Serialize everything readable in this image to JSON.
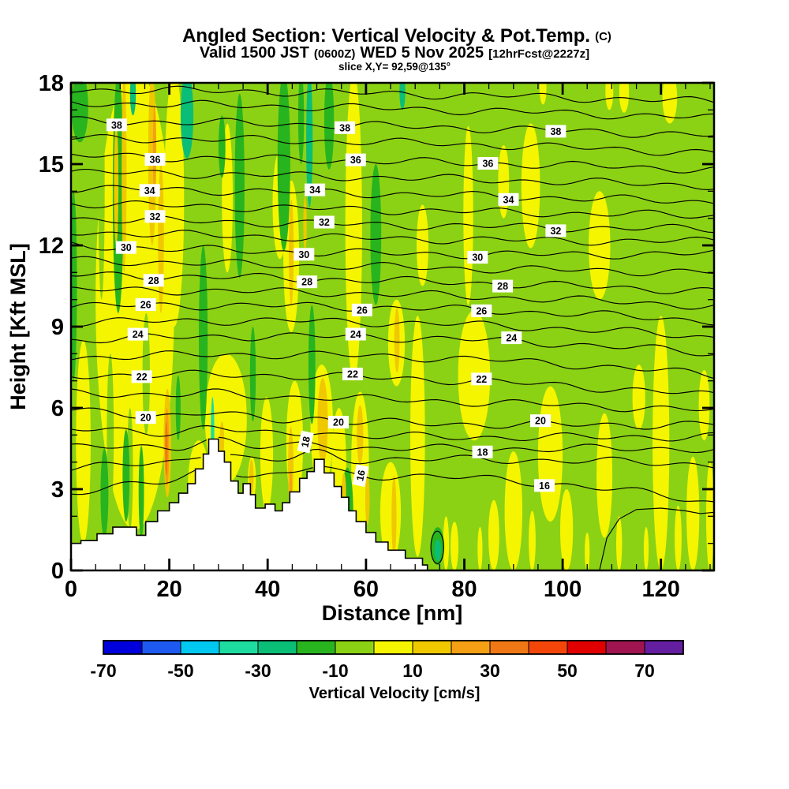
{
  "header": {
    "title_main": "Angled Section: Vertical Velocity & Pot.Temp.",
    "title_unit": "(C)",
    "valid_prefix": "Valid 1500 JST",
    "valid_utc": "(0600Z)",
    "valid_date": "WED 5 Nov 2025",
    "valid_fcst": "[12hrFcst@2227z]",
    "slice": "slice X,Y= 92,59@135°"
  },
  "chart_data": {
    "type": "filled-contour-cross-section",
    "title": "Angled Section: Vertical Velocity & Pot.Temp. (C)",
    "x_axis": {
      "label": "Distance [nm]",
      "min": 0,
      "max": 130.8,
      "major_tick_step": 20,
      "minor_tick_step": 5,
      "tick_labels": [
        0,
        20,
        40,
        60,
        80,
        100,
        120
      ]
    },
    "y_axis": {
      "label": "Height [Kft MSL]",
      "min": 0,
      "max": 18,
      "major_tick_step": 3,
      "minor_tick_step": 1,
      "tick_labels": [
        0,
        3,
        6,
        9,
        12,
        15,
        18
      ]
    },
    "fill_field": {
      "name": "Vertical Velocity",
      "unit": "cm/s",
      "background_value_bin": "-10..0"
    },
    "colorbar": {
      "title": "Vertical Velocity [cm/s]",
      "min": -70,
      "max": 80,
      "step": 10,
      "tick_labels": [
        -70,
        -50,
        -30,
        -10,
        10,
        30,
        50,
        70
      ],
      "colors": [
        "#0000DC",
        "#1E5AF0",
        "#00C8F0",
        "#1EDCA0",
        "#0ABE78",
        "#28B41E",
        "#8CD214",
        "#F5F500",
        "#F0C800",
        "#F5A014",
        "#F07814",
        "#F5460A",
        "#E10000",
        "#A01450",
        "#641EA0"
      ]
    },
    "contours": {
      "name": "Potential Temperature",
      "unit": "C",
      "interval": 1,
      "label_interval": 2,
      "level_format": "[theta_C, height_kft_at_x0, height_kft_at_x65, height_kft_at_x131]",
      "levels": [
        [
          16,
          2.9,
          3.5,
          2.5
        ],
        [
          17,
          3.8,
          4.1,
          3.9
        ],
        [
          18,
          4.55,
          4.5,
          4.5
        ],
        [
          19,
          5.2,
          4.95,
          4.95
        ],
        [
          20,
          5.9,
          5.45,
          5.4
        ],
        [
          21,
          6.55,
          6.3,
          5.9
        ],
        [
          22,
          7.2,
          7.1,
          6.45
        ],
        [
          23,
          7.85,
          7.9,
          7.2
        ],
        [
          24,
          8.5,
          8.6,
          8.0
        ],
        [
          25,
          9.15,
          9.15,
          8.6
        ],
        [
          26,
          9.75,
          9.7,
          9.2
        ],
        [
          27,
          10.35,
          10.2,
          9.75
        ],
        [
          28,
          10.9,
          10.7,
          10.3
        ],
        [
          29,
          11.45,
          11.2,
          11.0
        ],
        [
          30,
          12.0,
          11.7,
          11.7
        ],
        [
          31,
          12.5,
          12.25,
          12.15
        ],
        [
          32,
          13.0,
          12.75,
          12.6
        ],
        [
          33,
          13.55,
          13.3,
          13.1
        ],
        [
          34,
          14.1,
          13.9,
          13.6
        ],
        [
          35,
          14.7,
          14.5,
          14.2
        ],
        [
          36,
          15.3,
          15.1,
          14.8
        ],
        [
          37,
          15.95,
          15.8,
          15.4
        ],
        [
          38,
          16.6,
          16.4,
          16.05
        ],
        [
          39,
          17.25,
          17.05,
          16.7
        ],
        [
          40,
          17.75,
          17.6,
          17.3
        ]
      ],
      "label_format": "[theta_C, [[x_nm, rotated_flag], ...]]",
      "labels": [
        [
          16,
          [
            [
              58.9,
              1
            ],
            [
              96.3,
              0
            ]
          ]
        ],
        [
          18,
          [
            [
              47.7,
              1
            ],
            [
              83.7,
              0
            ]
          ]
        ],
        [
          20,
          [
            [
              15.2,
              0
            ],
            [
              54.4,
              0
            ],
            [
              95.5,
              0
            ]
          ]
        ],
        [
          22,
          [
            [
              14.4,
              0
            ],
            [
              57.3,
              0
            ],
            [
              83.5,
              0
            ]
          ]
        ],
        [
          24,
          [
            [
              13.6,
              0
            ],
            [
              57.9,
              0
            ],
            [
              89.6,
              0
            ]
          ]
        ],
        [
          26,
          [
            [
              15.2,
              0
            ],
            [
              59.2,
              0
            ],
            [
              83.5,
              0
            ]
          ]
        ],
        [
          28,
          [
            [
              16.8,
              0
            ],
            [
              48,
              0
            ],
            [
              87.8,
              0
            ]
          ]
        ],
        [
          30,
          [
            [
              11.2,
              0
            ],
            [
              47.4,
              0
            ],
            [
              82.7,
              0
            ]
          ]
        ],
        [
          32,
          [
            [
              17.1,
              0
            ],
            [
              51.5,
              0
            ],
            [
              98.6,
              0
            ]
          ]
        ],
        [
          34,
          [
            [
              16,
              0
            ],
            [
              49.6,
              0
            ],
            [
              89,
              0
            ]
          ]
        ],
        [
          36,
          [
            [
              17.1,
              0
            ],
            [
              57.9,
              0
            ],
            [
              84.8,
              0
            ]
          ]
        ],
        [
          38,
          [
            [
              9.3,
              0
            ],
            [
              55.7,
              0
            ],
            [
              98.6,
              0
            ]
          ]
        ]
      ],
      "extra_lines": [
        {
          "pts": [
            [
              107.5,
              0
            ],
            [
              109,
              1.2
            ],
            [
              111.5,
              1.9
            ],
            [
              115,
              2.25
            ],
            [
              120,
              2.3
            ],
            [
              125,
              2.2
            ],
            [
              128,
              2.1
            ],
            [
              131,
              2.15
            ]
          ]
        },
        {
          "ellipse": [
            74.5,
            0.85,
            1.3,
            0.6
          ]
        }
      ]
    },
    "terrain": {
      "fill": "#FFFFFF",
      "profile_format": "[distance_nm, height_kft]",
      "profile": [
        [
          0,
          1.0
        ],
        [
          2,
          1.1
        ],
        [
          5.3,
          1.35
        ],
        [
          8.5,
          1.6
        ],
        [
          13.3,
          1.3
        ],
        [
          15.2,
          1.8
        ],
        [
          17.6,
          2.2
        ],
        [
          20,
          2.5
        ],
        [
          21.9,
          2.85
        ],
        [
          23.7,
          3.2
        ],
        [
          25.3,
          3.75
        ],
        [
          26.9,
          4.3
        ],
        [
          28,
          4.85
        ],
        [
          30,
          4.4
        ],
        [
          31.2,
          4.0
        ],
        [
          32.5,
          3.3
        ],
        [
          34,
          2.85
        ],
        [
          35,
          3.2
        ],
        [
          36.5,
          2.8
        ],
        [
          37.5,
          2.3
        ],
        [
          39.5,
          2.45
        ],
        [
          41.5,
          2.2
        ],
        [
          43,
          2.5
        ],
        [
          44.5,
          2.9
        ],
        [
          46.5,
          3.4
        ],
        [
          48,
          3.65
        ],
        [
          49.5,
          4.1
        ],
        [
          51.5,
          3.6
        ],
        [
          53.5,
          3.1
        ],
        [
          55,
          2.7
        ],
        [
          56.5,
          2.2
        ],
        [
          58,
          1.8
        ],
        [
          60,
          1.4
        ],
        [
          62,
          1.05
        ],
        [
          64.5,
          0.75
        ],
        [
          68,
          0.45
        ],
        [
          71.5,
          0.2
        ],
        [
          72.5,
          0
        ]
      ]
    },
    "patch_format": "[x_nm, h_bottom_kft, h_top_kft, width_nm, color_key]",
    "patch_colors": {
      "y": "#F5F500",
      "g1": "#8CD214",
      "g2": "#28B41E",
      "t": "#0ABE78",
      "sp": "#1EDCA0",
      "gd": "#F0C800",
      "o": "#F5A014",
      "o2": "#F07814"
    },
    "patches": [
      [
        13,
        1.5,
        18.5,
        16,
        "y"
      ],
      [
        2.5,
        1,
        8.5,
        3,
        "y"
      ],
      [
        21,
        9,
        18.4,
        4,
        "y"
      ],
      [
        26,
        1.2,
        4.8,
        4.5,
        "y"
      ],
      [
        31.8,
        11,
        16.5,
        2.2,
        "y"
      ],
      [
        31.5,
        3.2,
        8,
        8.5,
        "y"
      ],
      [
        39.8,
        2.2,
        6.4,
        2.6,
        "y"
      ],
      [
        42.5,
        11.5,
        15.5,
        3,
        "y"
      ],
      [
        45.5,
        2.4,
        7,
        3.4,
        "y"
      ],
      [
        44.8,
        8.8,
        14.4,
        3.2,
        "y"
      ],
      [
        51,
        3,
        7.6,
        4.6,
        "y"
      ],
      [
        54.5,
        1.6,
        6,
        3,
        "y"
      ],
      [
        58.8,
        1.2,
        6.6,
        3.6,
        "y"
      ],
      [
        57.5,
        7,
        18.4,
        3.4,
        "y"
      ],
      [
        65,
        0.3,
        4,
        4.2,
        "y"
      ],
      [
        66.2,
        6.8,
        10,
        3.4,
        "y"
      ],
      [
        70.5,
        0.5,
        9.4,
        3,
        "y"
      ],
      [
        71.5,
        10.5,
        13.5,
        2.4,
        "y"
      ],
      [
        80.8,
        9.8,
        16.4,
        2,
        "y"
      ],
      [
        82,
        4.8,
        9.6,
        6.5,
        "y"
      ],
      [
        88,
        13,
        15.7,
        2.2,
        "y"
      ],
      [
        93.5,
        11.9,
        16.5,
        3.8,
        "y"
      ],
      [
        90,
        0,
        4.4,
        3.6,
        "y"
      ],
      [
        97.5,
        1.8,
        6.8,
        5,
        "y"
      ],
      [
        86,
        0,
        2.6,
        2.2,
        "y"
      ],
      [
        100.8,
        0,
        3,
        2.6,
        "y"
      ],
      [
        107.5,
        10,
        14,
        4.4,
        "y"
      ],
      [
        108.5,
        1.2,
        5.8,
        3.2,
        "y"
      ],
      [
        112.5,
        16.9,
        18.4,
        2,
        "y"
      ],
      [
        120,
        0,
        9.4,
        3.4,
        "y"
      ],
      [
        121.8,
        16.5,
        18.4,
        3,
        "y"
      ],
      [
        126.5,
        0,
        4.2,
        2.6,
        "y"
      ],
      [
        128.8,
        4.8,
        7.4,
        2.2,
        "y"
      ],
      [
        115.5,
        5.2,
        7.6,
        2.6,
        "y"
      ],
      [
        96,
        17.2,
        18.4,
        1.4,
        "y"
      ],
      [
        109.5,
        17,
        18.4,
        1.6,
        "y"
      ],
      [
        78,
        0,
        1.8,
        1.6,
        "y"
      ],
      [
        76.3,
        0,
        2,
        1.2,
        "y"
      ],
      [
        83.2,
        0,
        1.6,
        1,
        "y"
      ],
      [
        93.8,
        0,
        2.2,
        1.4,
        "y"
      ],
      [
        105,
        0,
        1.4,
        1,
        "y"
      ],
      [
        111.5,
        0,
        2,
        1.2,
        "y"
      ],
      [
        117,
        0,
        1.6,
        1,
        "y"
      ],
      [
        123.5,
        0,
        2.4,
        1.4,
        "y"
      ],
      [
        130,
        0,
        4,
        1.6,
        "y"
      ],
      [
        36.8,
        2.6,
        4.2,
        1.6,
        "y"
      ],
      [
        6.2,
        10,
        18.4,
        1.3,
        "g1"
      ],
      [
        12,
        1.5,
        6,
        1.2,
        "g1"
      ],
      [
        15.3,
        5,
        9.5,
        1.5,
        "g1"
      ],
      [
        8,
        2,
        8,
        1.4,
        "g1"
      ],
      [
        1.8,
        15.8,
        18.4,
        3.4,
        "g2"
      ],
      [
        0.5,
        7,
        14,
        1.4,
        "g2"
      ],
      [
        9.6,
        9.5,
        18.4,
        2.2,
        "g2"
      ],
      [
        6.8,
        1.2,
        4.5,
        1.6,
        "g2"
      ],
      [
        11.2,
        1.8,
        5.2,
        1.4,
        "g2"
      ],
      [
        14.3,
        1.2,
        4.6,
        1.1,
        "g2"
      ],
      [
        21.8,
        4.8,
        7.2,
        1,
        "g2"
      ],
      [
        26.9,
        5.2,
        12,
        1.8,
        "g2"
      ],
      [
        30.7,
        14.5,
        16.8,
        1.4,
        "g2"
      ],
      [
        34.3,
        10.8,
        17.6,
        2,
        "g2"
      ],
      [
        37,
        5.5,
        9,
        1.2,
        "g2"
      ],
      [
        43.3,
        11.8,
        18.4,
        2.6,
        "g2"
      ],
      [
        46.8,
        15,
        18.4,
        1.2,
        "g2"
      ],
      [
        49,
        5.4,
        9.8,
        1.4,
        "g2"
      ],
      [
        52.5,
        14.8,
        18.4,
        2,
        "g2"
      ],
      [
        62,
        9.8,
        15,
        2.2,
        "g2"
      ],
      [
        56.2,
        0.5,
        3.8,
        2.4,
        "g2"
      ],
      [
        74.6,
        0.2,
        1.6,
        2.6,
        "g2"
      ],
      [
        23.6,
        15.2,
        18.4,
        2.6,
        "t"
      ],
      [
        12.6,
        16.8,
        18.4,
        1.2,
        "t"
      ],
      [
        48.5,
        13.4,
        18.4,
        1.3,
        "t"
      ],
      [
        67.4,
        17,
        18.4,
        1.2,
        "t"
      ],
      [
        74.6,
        0.35,
        1.15,
        1.3,
        "t"
      ],
      [
        28.8,
        3.9,
        6.4,
        0.7,
        "sp"
      ],
      [
        9.2,
        12,
        16.5,
        0.9,
        "gd"
      ],
      [
        10.8,
        11,
        18.4,
        1,
        "gd"
      ],
      [
        16.5,
        12,
        18.4,
        1.6,
        "gd"
      ],
      [
        18.3,
        9.5,
        15,
        1.2,
        "gd"
      ],
      [
        19.6,
        2.7,
        6.7,
        1.5,
        "gd"
      ],
      [
        30.7,
        4.1,
        5.5,
        0.9,
        "gd"
      ],
      [
        36.7,
        2.8,
        4.1,
        0.9,
        "gd"
      ],
      [
        44.7,
        2.3,
        5.3,
        1.1,
        "gd"
      ],
      [
        44.8,
        9.8,
        13.7,
        1,
        "gd"
      ],
      [
        47.6,
        11.8,
        13.8,
        0.7,
        "gd"
      ],
      [
        51.2,
        3.9,
        7.1,
        2.1,
        "gd"
      ],
      [
        55.5,
        2.2,
        3.6,
        0.9,
        "gd"
      ],
      [
        58.8,
        3.9,
        6.1,
        1.3,
        "gd"
      ],
      [
        60.3,
        1.7,
        3.5,
        0.9,
        "gd"
      ],
      [
        65.7,
        0.5,
        3.5,
        1,
        "gd"
      ],
      [
        66.3,
        7.3,
        9.7,
        1.1,
        "gd"
      ],
      [
        17,
        13.8,
        17.2,
        0.7,
        "o"
      ],
      [
        19.5,
        3.1,
        6,
        0.9,
        "o"
      ],
      [
        44.7,
        2.7,
        3.7,
        0.5,
        "o"
      ],
      [
        19.4,
        3.5,
        5.5,
        0.5,
        "o2"
      ]
    ]
  }
}
